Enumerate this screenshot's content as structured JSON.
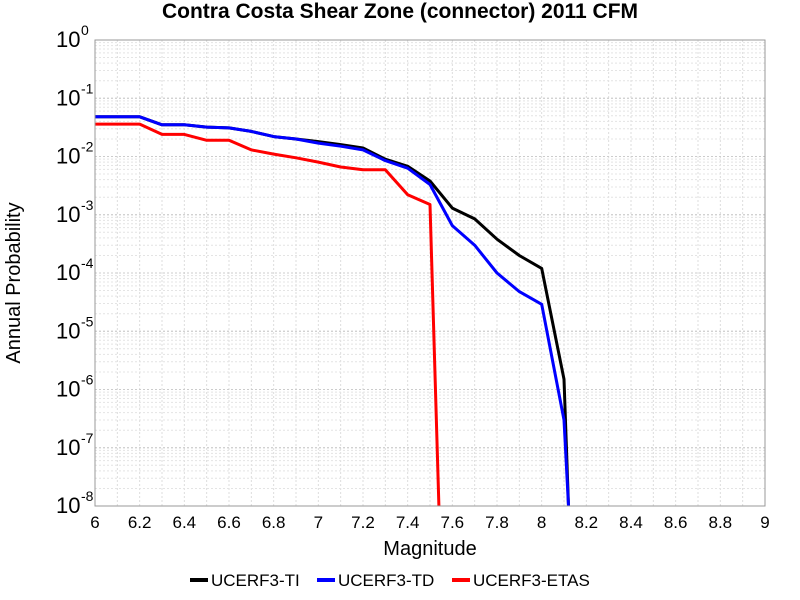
{
  "chart_data": {
    "type": "line",
    "title": "Contra Costa Shear Zone (connector) 2011 CFM",
    "xlabel": "Magnitude",
    "ylabel": "Annual Probability",
    "xlim": [
      6,
      9
    ],
    "ylim": [
      1e-08,
      1
    ],
    "yscale": "log",
    "grid": true,
    "legend_position": "bottom",
    "x_ticks": [
      "6",
      "6.2",
      "6.4",
      "6.6",
      "6.8",
      "7",
      "7.2",
      "7.4",
      "7.6",
      "7.8",
      "8",
      "8.2",
      "8.4",
      "8.6",
      "8.8",
      "9"
    ],
    "y_ticks": [
      {
        "base": "10",
        "exp": "-8"
      },
      {
        "base": "10",
        "exp": "-7"
      },
      {
        "base": "10",
        "exp": "-6"
      },
      {
        "base": "10",
        "exp": "-5"
      },
      {
        "base": "10",
        "exp": "-4"
      },
      {
        "base": "10",
        "exp": "-3"
      },
      {
        "base": "10",
        "exp": "-2"
      },
      {
        "base": "10",
        "exp": "-1"
      },
      {
        "base": "10",
        "exp": "0"
      }
    ],
    "series": [
      {
        "name": "UCERF3-TI",
        "color": "#000000",
        "x": [
          6.0,
          6.2,
          6.3,
          6.4,
          6.5,
          6.6,
          6.7,
          6.8,
          6.9,
          7.0,
          7.1,
          7.2,
          7.3,
          7.4,
          7.5,
          7.6,
          7.7,
          7.8,
          7.9,
          8.0,
          8.1,
          8.12
        ],
        "y": [
          0.048,
          0.048,
          0.035,
          0.035,
          0.032,
          0.031,
          0.027,
          0.022,
          0.02,
          0.018,
          0.016,
          0.014,
          0.009,
          0.0068,
          0.0038,
          0.0013,
          0.00085,
          0.00038,
          0.0002,
          0.00012,
          1.5e-06,
          1e-08
        ]
      },
      {
        "name": "UCERF3-TD",
        "color": "#0000ff",
        "x": [
          6.0,
          6.2,
          6.3,
          6.4,
          6.5,
          6.6,
          6.7,
          6.8,
          6.9,
          7.0,
          7.1,
          7.2,
          7.3,
          7.4,
          7.5,
          7.6,
          7.7,
          7.8,
          7.9,
          8.0,
          8.1,
          8.12
        ],
        "y": [
          0.048,
          0.048,
          0.035,
          0.035,
          0.032,
          0.031,
          0.027,
          0.022,
          0.02,
          0.017,
          0.015,
          0.013,
          0.0085,
          0.0063,
          0.0033,
          0.00065,
          0.0003,
          0.0001,
          4.8e-05,
          2.9e-05,
          3e-07,
          1e-08
        ]
      },
      {
        "name": "UCERF3-ETAS",
        "color": "#ff0000",
        "x": [
          6.0,
          6.2,
          6.3,
          6.4,
          6.5,
          6.6,
          6.7,
          6.8,
          6.9,
          7.0,
          7.1,
          7.2,
          7.3,
          7.4,
          7.5,
          7.54
        ],
        "y": [
          0.036,
          0.036,
          0.024,
          0.024,
          0.019,
          0.019,
          0.013,
          0.011,
          0.0095,
          0.008,
          0.0066,
          0.0059,
          0.0059,
          0.0022,
          0.0015,
          1e-08
        ]
      }
    ]
  }
}
